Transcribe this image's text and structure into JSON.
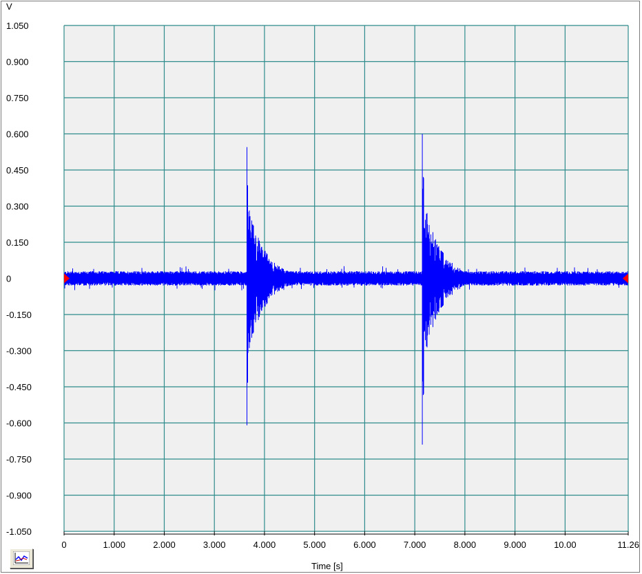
{
  "plot": {
    "y_unit": "V",
    "x_label": "Time [s]",
    "chart_type_button_icon": "line-chart-icon"
  },
  "colors": {
    "plot_background": "#f0f0f0",
    "grid": "#2e8b8b",
    "signal": "#0000ff",
    "cursor_marker": "#ff0000"
  },
  "chart_data": {
    "type": "line",
    "title": "",
    "xlabel": "Time [s]",
    "ylabel": "V",
    "xlim": [
      0,
      11.26
    ],
    "ylim": [
      -1.05,
      1.05
    ],
    "grid": true,
    "y_tick_labels": [
      "1.050",
      "0.900",
      "0.750",
      "0.600",
      "0.450",
      "0.300",
      "0.150",
      "0",
      "-0.150",
      "-0.300",
      "-0.450",
      "-0.600",
      "-0.750",
      "-0.900",
      "-1.050"
    ],
    "y_tick_values": [
      1.05,
      0.9,
      0.75,
      0.6,
      0.45,
      0.3,
      0.15,
      0,
      -0.15,
      -0.3,
      -0.45,
      -0.6,
      -0.75,
      -0.9,
      -1.05
    ],
    "x_tick_labels": [
      "0",
      "1.000",
      "2.000",
      "3.000",
      "4.000",
      "5.000",
      "6.000",
      "7.000",
      "8.000",
      "9.000",
      "10.00",
      "11.26"
    ],
    "x_tick_values": [
      0,
      1,
      2,
      3,
      4,
      5,
      6,
      7,
      8,
      9,
      10,
      11.26
    ],
    "series": [
      {
        "baseline_noise_amplitude": 0.03,
        "events": [
          {
            "t": 3.65,
            "peak_max": 0.545,
            "peak_min": -0.61,
            "decay_s": 0.35
          },
          {
            "t": 7.15,
            "peak_max": 0.6,
            "peak_min": -0.69,
            "decay_s": 0.35
          }
        ]
      }
    ],
    "cursor_markers": [
      {
        "t": 0,
        "v": 0
      },
      {
        "t": 11.26,
        "v": 0
      }
    ]
  }
}
